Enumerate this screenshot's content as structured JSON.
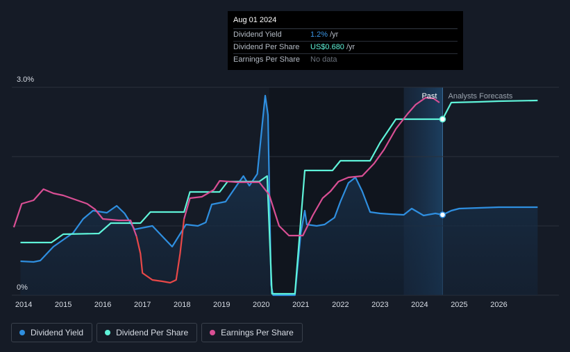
{
  "chart_data": {
    "type": "line",
    "y_axis": {
      "labels": [
        "3.0%",
        "0%"
      ],
      "min": 0,
      "max": 3.0,
      "unit": "%"
    },
    "x_axis": {
      "ticks": [
        "2014",
        "2015",
        "2016",
        "2017",
        "2018",
        "2019",
        "2020",
        "2021",
        "2022",
        "2023",
        "2024",
        "2025",
        "2026"
      ],
      "range": [
        2013.75,
        2026.98
      ]
    },
    "regions": {
      "past_label": "Past",
      "forecast_label": "Analysts Forecasts",
      "forecast_start": 2024.58
    },
    "tooltip": {
      "date": "Aug 01 2024",
      "rows": [
        {
          "label": "Dividend Yield",
          "value": "1.2%",
          "unit": "/yr",
          "color": "#3b97e6"
        },
        {
          "label": "Dividend Per Share",
          "value": "US$0.680",
          "unit": "/yr",
          "color": "#5ff3d9"
        },
        {
          "label": "Earnings Per Share",
          "value": "No data",
          "unit": "",
          "color": "#6b727c"
        }
      ]
    },
    "series": [
      {
        "name": "Dividend Yield",
        "color": "#2f8fe0",
        "filled": true,
        "points": [
          [
            2013.92,
            0.49
          ],
          [
            2014.25,
            0.48
          ],
          [
            2014.42,
            0.5
          ],
          [
            2014.75,
            0.7
          ],
          [
            2015.25,
            0.9
          ],
          [
            2015.5,
            1.1
          ],
          [
            2015.75,
            1.22
          ],
          [
            2016.1,
            1.19
          ],
          [
            2016.35,
            1.29
          ],
          [
            2016.55,
            1.18
          ],
          [
            2016.8,
            0.95
          ],
          [
            2017.25,
            1.0
          ],
          [
            2017.5,
            0.85
          ],
          [
            2017.75,
            0.7
          ],
          [
            2018.1,
            1.02
          ],
          [
            2018.4,
            1.0
          ],
          [
            2018.6,
            1.05
          ],
          [
            2018.75,
            1.31
          ],
          [
            2019.1,
            1.35
          ],
          [
            2019.4,
            1.6
          ],
          [
            2019.55,
            1.72
          ],
          [
            2019.7,
            1.58
          ],
          [
            2019.9,
            1.75
          ],
          [
            2020.05,
            2.6
          ],
          [
            2020.1,
            2.88
          ],
          [
            2020.17,
            2.6
          ],
          [
            2020.25,
            0.15
          ],
          [
            2020.3,
            0.0
          ],
          [
            2020.85,
            0.0
          ],
          [
            2021.0,
            0.9
          ],
          [
            2021.1,
            1.22
          ],
          [
            2021.15,
            1.02
          ],
          [
            2021.4,
            1.0
          ],
          [
            2021.6,
            1.02
          ],
          [
            2021.85,
            1.12
          ],
          [
            2022.0,
            1.35
          ],
          [
            2022.2,
            1.62
          ],
          [
            2022.38,
            1.7
          ],
          [
            2022.55,
            1.5
          ],
          [
            2022.75,
            1.2
          ],
          [
            2023.0,
            1.18
          ],
          [
            2023.25,
            1.17
          ],
          [
            2023.6,
            1.16
          ],
          [
            2023.8,
            1.25
          ],
          [
            2024.1,
            1.15
          ],
          [
            2024.4,
            1.18
          ],
          [
            2024.58,
            1.16
          ],
          [
            2024.8,
            1.22
          ],
          [
            2025.0,
            1.25
          ],
          [
            2025.5,
            1.26
          ],
          [
            2026.0,
            1.27
          ],
          [
            2026.98,
            1.27
          ]
        ]
      },
      {
        "name": "Dividend Per Share",
        "color": "#5ff3d9",
        "filled": false,
        "points": [
          [
            2013.92,
            0.76
          ],
          [
            2014.7,
            0.76
          ],
          [
            2015.0,
            0.88
          ],
          [
            2015.9,
            0.89
          ],
          [
            2016.2,
            1.04
          ],
          [
            2016.95,
            1.04
          ],
          [
            2017.2,
            1.2
          ],
          [
            2018.05,
            1.2
          ],
          [
            2018.2,
            1.49
          ],
          [
            2018.95,
            1.49
          ],
          [
            2019.15,
            1.64
          ],
          [
            2019.95,
            1.64
          ],
          [
            2020.15,
            1.72
          ],
          [
            2020.27,
            0.02
          ],
          [
            2020.85,
            0.02
          ],
          [
            2021.1,
            1.8
          ],
          [
            2021.8,
            1.8
          ],
          [
            2022.0,
            1.94
          ],
          [
            2022.75,
            1.94
          ],
          [
            2023.0,
            2.2
          ],
          [
            2023.4,
            2.54
          ],
          [
            2024.58,
            2.54
          ],
          [
            2024.8,
            2.78
          ],
          [
            2025.5,
            2.79
          ],
          [
            2026.0,
            2.8
          ],
          [
            2026.98,
            2.81
          ]
        ]
      },
      {
        "name": "Earnings Per Share",
        "color": "#d94f94",
        "color_low": "#e84848",
        "filled": false,
        "points": [
          [
            2013.75,
            0.98
          ],
          [
            2013.95,
            1.32
          ],
          [
            2014.25,
            1.37
          ],
          [
            2014.5,
            1.53
          ],
          [
            2014.75,
            1.47
          ],
          [
            2015.0,
            1.44
          ],
          [
            2015.3,
            1.38
          ],
          [
            2015.6,
            1.32
          ],
          [
            2015.8,
            1.24
          ],
          [
            2016.0,
            1.1
          ],
          [
            2016.4,
            1.08
          ],
          [
            2016.7,
            1.08
          ],
          [
            2016.85,
            0.85
          ],
          [
            2016.95,
            0.6
          ],
          [
            2017.0,
            0.32
          ],
          [
            2017.25,
            0.22
          ],
          [
            2017.5,
            0.2
          ],
          [
            2017.7,
            0.18
          ],
          [
            2017.85,
            0.22
          ],
          [
            2017.95,
            0.6
          ],
          [
            2018.05,
            1.1
          ],
          [
            2018.2,
            1.4
          ],
          [
            2018.5,
            1.42
          ],
          [
            2018.8,
            1.52
          ],
          [
            2018.95,
            1.65
          ],
          [
            2019.4,
            1.63
          ],
          [
            2019.95,
            1.63
          ],
          [
            2020.2,
            1.45
          ],
          [
            2020.45,
            1.0
          ],
          [
            2020.7,
            0.86
          ],
          [
            2021.05,
            0.86
          ],
          [
            2021.3,
            1.15
          ],
          [
            2021.55,
            1.4
          ],
          [
            2021.75,
            1.5
          ],
          [
            2021.95,
            1.64
          ],
          [
            2022.2,
            1.7
          ],
          [
            2022.55,
            1.72
          ],
          [
            2022.85,
            1.9
          ],
          [
            2023.1,
            2.1
          ],
          [
            2023.4,
            2.4
          ],
          [
            2023.7,
            2.62
          ],
          [
            2023.9,
            2.75
          ],
          [
            2024.15,
            2.85
          ],
          [
            2024.35,
            2.84
          ],
          [
            2024.5,
            2.78
          ]
        ]
      }
    ],
    "legend": [
      "Dividend Yield",
      "Dividend Per Share",
      "Earnings Per Share"
    ],
    "legend_placement": "bottom-left",
    "grid": true
  }
}
